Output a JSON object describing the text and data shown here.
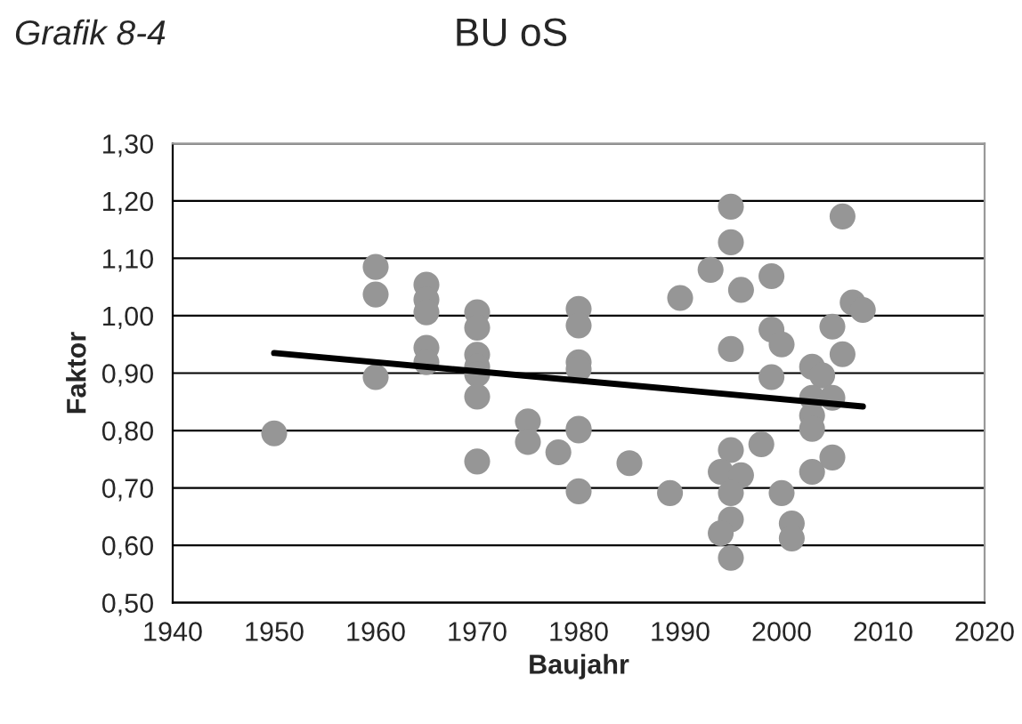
{
  "chart_data": {
    "type": "scatter",
    "title": "BU oS",
    "subtitle": "Grafik 8-4",
    "xlabel": "Baujahr",
    "ylabel": "Faktor",
    "series": [
      {
        "color": "#969696",
        "marker": "circle",
        "x": [
          1950,
          1960,
          1960,
          1960,
          1965,
          1965,
          1965,
          1965,
          1965,
          1970,
          1970,
          1970,
          1970,
          1970,
          1970,
          1970,
          1975,
          1975,
          1978,
          1980,
          1980,
          1980,
          1980,
          1980,
          1980,
          1980,
          1985,
          1989,
          1990,
          1993,
          1995,
          1995,
          1996,
          1995,
          1995,
          1994,
          1996,
          1995,
          1995,
          1994,
          1995,
          1998,
          1999,
          1999,
          2000,
          1999,
          2000,
          2001,
          2001,
          2003,
          2004,
          2003,
          2003,
          2003,
          2005,
          2003,
          2005,
          2005,
          2006,
          2006,
          2007,
          2008
        ],
        "values": [
          0.795,
          1.085,
          1.037,
          0.893,
          1.054,
          1.028,
          1.006,
          0.944,
          0.919,
          1.006,
          0.979,
          0.932,
          0.911,
          0.898,
          0.859,
          0.746,
          0.816,
          0.78,
          0.762,
          1.012,
          0.983,
          0.919,
          0.907,
          0.803,
          0.8,
          0.694,
          0.743,
          0.691,
          1.031,
          1.08,
          1.19,
          1.128,
          1.045,
          0.942,
          0.766,
          0.728,
          0.722,
          0.691,
          0.645,
          0.621,
          0.578,
          0.776,
          1.069,
          0.976,
          0.95,
          0.893,
          0.691,
          0.638,
          0.612,
          0.911,
          0.896,
          0.857,
          0.826,
          0.803,
          0.857,
          0.728,
          0.753,
          0.981,
          0.933,
          1.173,
          1.023,
          1.01
        ]
      },
      {
        "type": "line",
        "color": "#000000",
        "marker": "none",
        "x": [
          1950,
          2008
        ],
        "values": [
          0.935,
          0.842
        ]
      }
    ],
    "xlim": [
      1940,
      2020
    ],
    "xticks": [
      1940,
      1950,
      1960,
      1970,
      1980,
      1990,
      2000,
      2010,
      2020
    ],
    "ylim": [
      0.5,
      1.3
    ],
    "yticks": [
      {
        "value": 0.5,
        "label": "0,50"
      },
      {
        "value": 0.6,
        "label": "0,60"
      },
      {
        "value": 0.7,
        "label": "0,70"
      },
      {
        "value": 0.8,
        "label": "0,80"
      },
      {
        "value": 0.9,
        "label": "0,90"
      },
      {
        "value": 1.0,
        "label": "1,00"
      },
      {
        "value": 1.1,
        "label": "1,10"
      },
      {
        "value": 1.2,
        "label": "1,20"
      },
      {
        "value": 1.3,
        "label": "1,30"
      }
    ],
    "grid": "y",
    "legend": false
  }
}
